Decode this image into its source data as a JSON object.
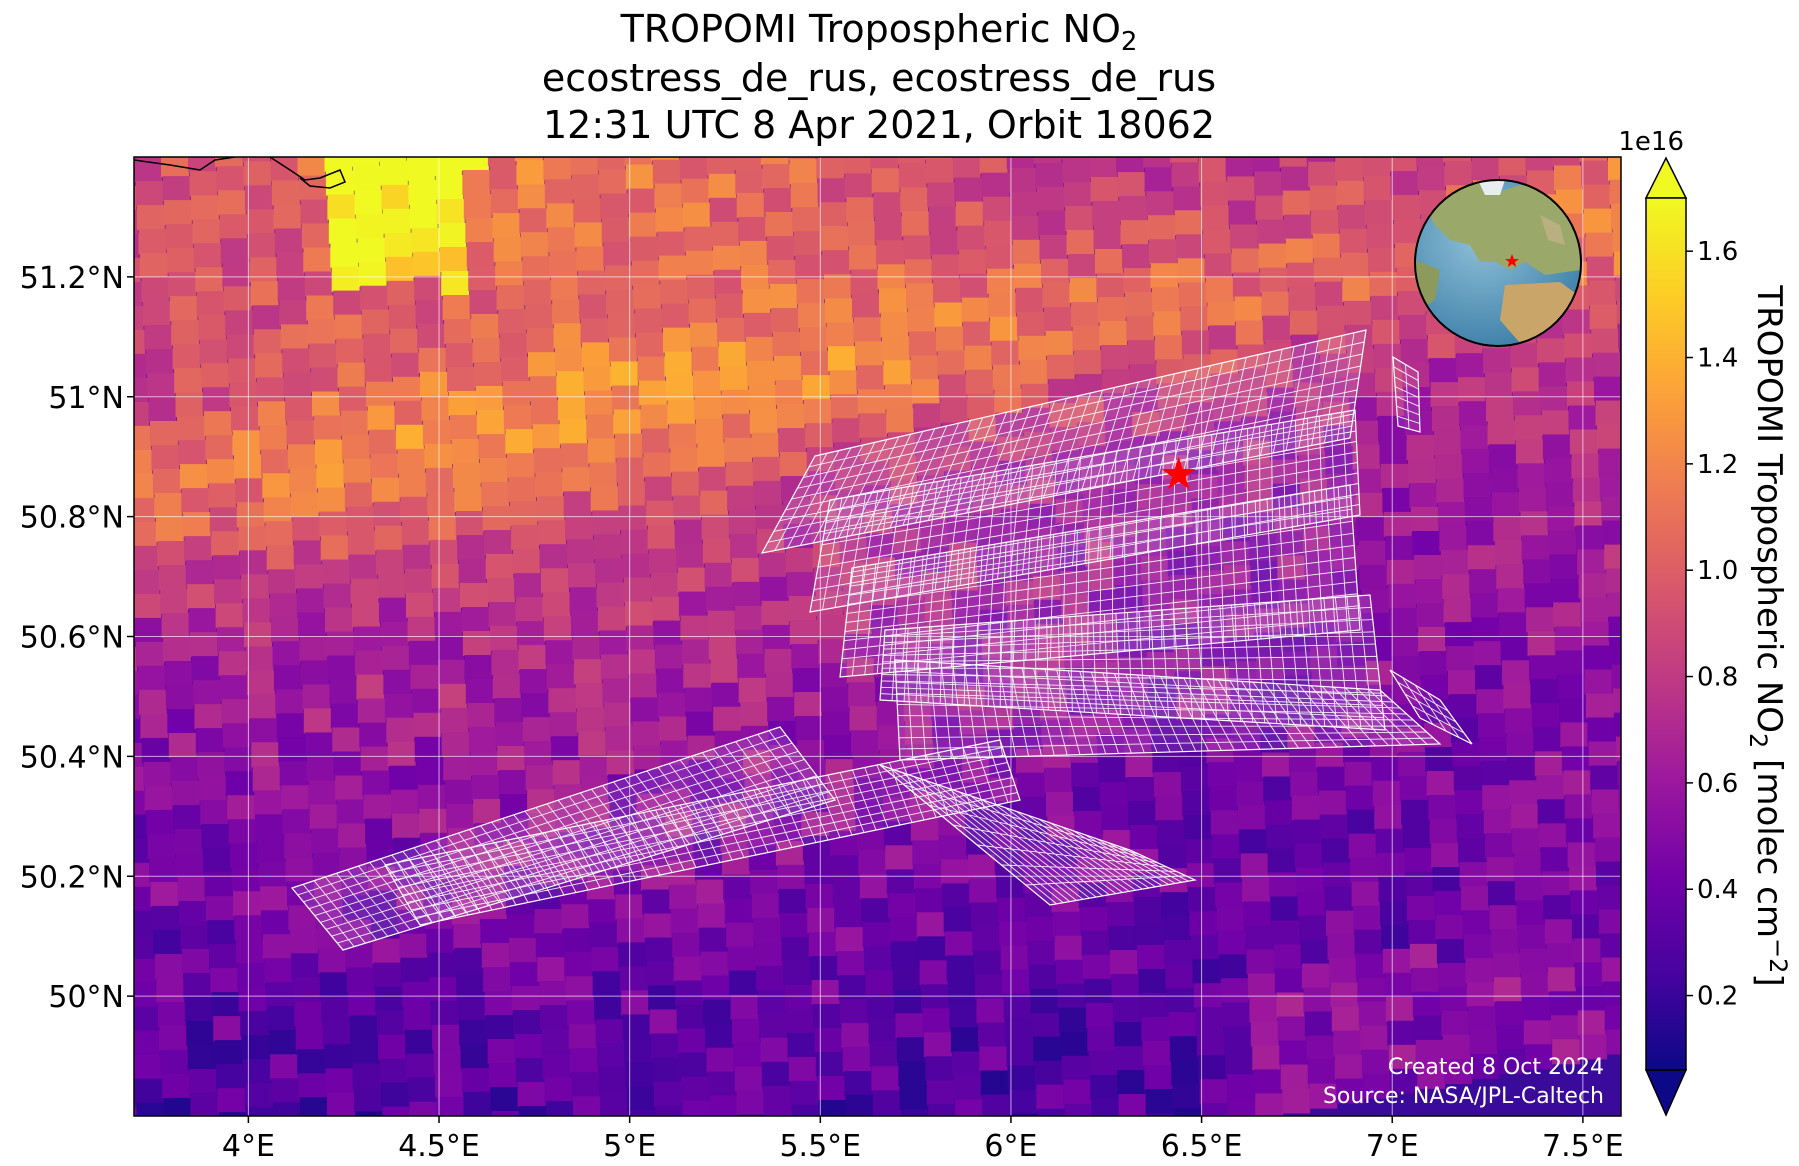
{
  "title": {
    "line1_main": "TROPOMI Tropospheric NO",
    "line1_sub": "2",
    "line2": "ecostress_de_rus, ecostress_de_rus",
    "line3": "12:31 UTC 8 Apr 2021, Orbit 18062"
  },
  "colorbar": {
    "label_main": "TROPOMI Tropospheric NO",
    "label_sub": "2",
    "label_units": " [molec cm",
    "label_exp": "−2",
    "label_close": "]",
    "scale": "1e16",
    "ticks": [
      "0.2",
      "0.4",
      "0.6",
      "0.8",
      "1.0",
      "1.2",
      "1.4",
      "1.6"
    ],
    "tick_values": [
      0.2,
      0.4,
      0.6,
      0.8,
      1.0,
      1.2,
      1.4,
      1.6
    ],
    "vmin": 0.06,
    "vmax": 1.7,
    "colormap": "plasma",
    "colors": [
      "#0d0887",
      "#46039f",
      "#7201a8",
      "#9c179e",
      "#bd3786",
      "#d8576b",
      "#ed7953",
      "#fb9f3a",
      "#fdca26",
      "#f0f921"
    ]
  },
  "map": {
    "lon_range": [
      3.7,
      7.6
    ],
    "lat_range": [
      49.8,
      51.4
    ],
    "x_ticks": [
      "4°E",
      "4.5°E",
      "5°E",
      "5.5°E",
      "6°E",
      "6.5°E",
      "7°E",
      "7.5°E"
    ],
    "x_tick_values": [
      4.0,
      4.5,
      5.0,
      5.5,
      6.0,
      6.5,
      7.0,
      7.5
    ],
    "y_ticks": [
      "50°N",
      "50.2°N",
      "50.4°N",
      "50.6°N",
      "50.8°N",
      "51°N",
      "51.2°N"
    ],
    "y_tick_values": [
      50.0,
      50.2,
      50.4,
      50.6,
      50.8,
      51.0,
      51.2
    ],
    "site_marker": {
      "lon": 6.44,
      "lat": 50.87,
      "color": "#ff0000",
      "icon": "star-marker"
    },
    "overlay_color": "#ffffff",
    "grid": true
  },
  "inset": {
    "icon": "globe-icon",
    "marker_color": "#ff0000"
  },
  "credits": {
    "created": "Created 8 Oct 2024",
    "source": "Source: NASA/JPL-Caltech"
  }
}
